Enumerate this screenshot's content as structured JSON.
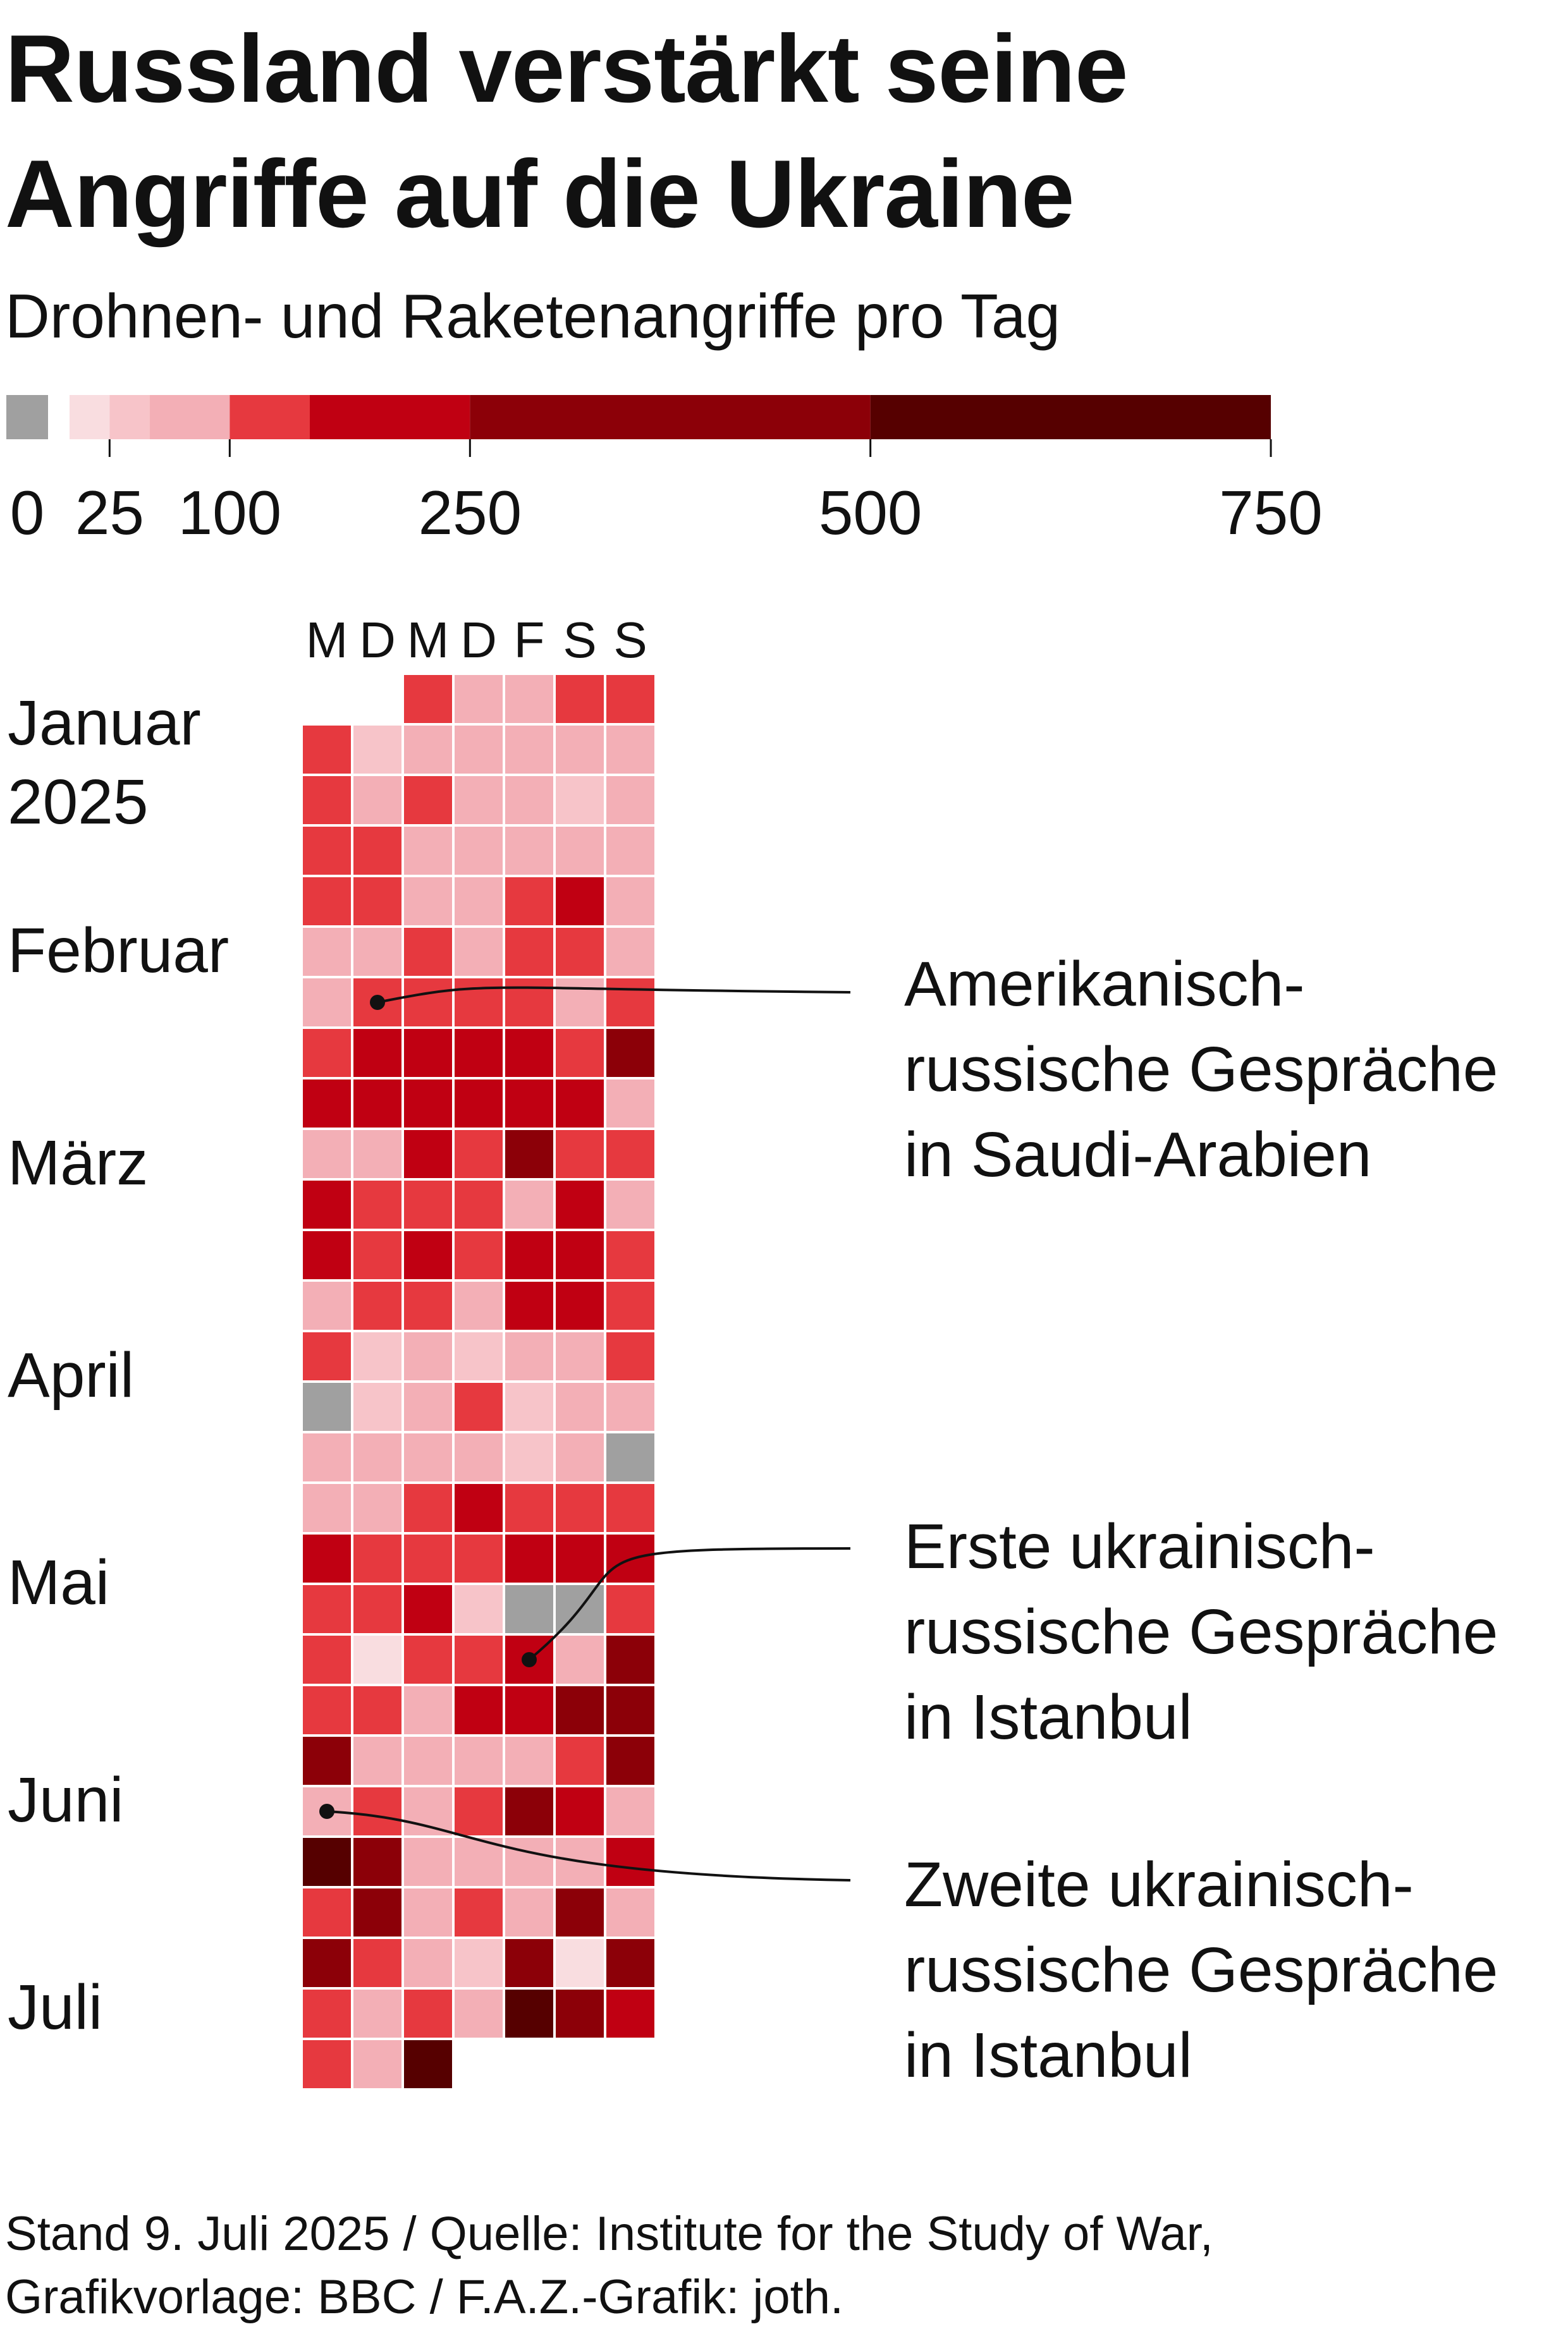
{
  "title_line1": "Russland verstärkt seine",
  "title_line2": "Angriffe auf die Ukraine",
  "subtitle": "Drohnen- und Raketenangriffe pro Tag",
  "footer_line1": "Stand 9. Juli 2025 / Quelle: Institute for the Study of War,",
  "footer_line2": "Grafikvorlage: BBC / F.A.Z.-Grafik: joth.",
  "annotations": [
    {
      "lines": [
        "Amerikanisch-",
        "russische Gespräche",
        "in Saudi-Arabien"
      ]
    },
    {
      "lines": [
        "Erste ukrainisch-",
        "russische Gespräche",
        "in Istanbul"
      ]
    },
    {
      "lines": [
        "Zweite ukrainisch-",
        "russische Gespräche",
        "in Istanbul"
      ]
    }
  ],
  "colors": {
    "b0": "#a0a0a0",
    "b1": "#f9dde0",
    "b2": "#f7c4c9",
    "b3": "#f3afb6",
    "b4": "#e6393f",
    "b5": "#c00012",
    "b6": "#8c0008",
    "b7": "#560000"
  },
  "chart_data": {
    "type": "heatmap",
    "legend": {
      "tick_labels": [
        "0",
        "25",
        "100",
        "250",
        "500",
        "750"
      ],
      "bins": [
        {
          "from": 0,
          "to": 0,
          "color": "b0"
        },
        {
          "from": 0,
          "to": 25,
          "color": "b1"
        },
        {
          "from": 25,
          "to": 50,
          "color": "b2"
        },
        {
          "from": 50,
          "to": 100,
          "color": "b3"
        },
        {
          "from": 100,
          "to": 150,
          "color": "b4"
        },
        {
          "from": 150,
          "to": 250,
          "color": "b5"
        },
        {
          "from": 250,
          "to": 500,
          "color": "b6"
        },
        {
          "from": 500,
          "to": 750,
          "color": "b7"
        }
      ]
    },
    "weekdays": [
      "M",
      "D",
      "M",
      "D",
      "F",
      "S",
      "S"
    ],
    "month_labels": [
      {
        "lines": [
          "Januar",
          "2025"
        ],
        "week": 1
      },
      {
        "lines": [
          "Februar"
        ],
        "week": 5.5
      },
      {
        "lines": [
          "März"
        ],
        "week": 9.7
      },
      {
        "lines": [
          "April"
        ],
        "week": 13.9
      },
      {
        "lines": [
          "Mai"
        ],
        "week": 18.0
      },
      {
        "lines": [
          "Juni"
        ],
        "week": 22.3
      },
      {
        "lines": [
          "Juli"
        ],
        "week": 26.4
      }
    ],
    "weeks": [
      [
        null,
        null,
        4,
        3,
        3,
        4,
        4
      ],
      [
        4,
        2,
        3,
        3,
        3,
        3,
        3
      ],
      [
        4,
        3,
        4,
        3,
        3,
        2,
        3
      ],
      [
        4,
        4,
        3,
        3,
        3,
        3,
        3
      ],
      [
        4,
        4,
        3,
        3,
        4,
        5,
        3
      ],
      [
        3,
        3,
        4,
        3,
        4,
        4,
        3
      ],
      [
        3,
        4,
        4,
        4,
        4,
        3,
        4
      ],
      [
        4,
        5,
        5,
        5,
        5,
        4,
        6
      ],
      [
        5,
        5,
        5,
        5,
        5,
        5,
        3
      ],
      [
        3,
        3,
        5,
        4,
        6,
        4,
        4
      ],
      [
        5,
        4,
        4,
        4,
        3,
        5,
        3
      ],
      [
        5,
        4,
        5,
        4,
        5,
        5,
        4
      ],
      [
        3,
        4,
        4,
        3,
        5,
        5,
        4
      ],
      [
        4,
        2,
        3,
        2,
        3,
        3,
        4
      ],
      [
        0,
        2,
        3,
        4,
        2,
        3,
        3
      ],
      [
        3,
        3,
        3,
        3,
        2,
        3,
        0
      ],
      [
        3,
        3,
        4,
        5,
        4,
        4,
        4
      ],
      [
        5,
        4,
        4,
        4,
        5,
        5,
        5
      ],
      [
        4,
        4,
        5,
        2,
        0,
        0,
        4
      ],
      [
        4,
        1,
        4,
        4,
        5,
        3,
        6
      ],
      [
        4,
        4,
        3,
        5,
        5,
        6,
        6
      ],
      [
        6,
        3,
        3,
        3,
        3,
        4,
        6
      ],
      [
        3,
        4,
        3,
        4,
        6,
        5,
        3
      ],
      [
        7,
        6,
        3,
        3,
        3,
        3,
        5
      ],
      [
        4,
        6,
        3,
        4,
        3,
        6,
        3
      ],
      [
        6,
        4,
        3,
        2,
        6,
        1,
        6
      ],
      [
        4,
        3,
        4,
        3,
        7,
        6,
        5
      ],
      [
        4,
        3,
        7,
        null,
        null,
        null,
        null
      ]
    ],
    "annotation_points": [
      {
        "week": 6,
        "day": 1
      },
      {
        "week": 19,
        "day": 4
      },
      {
        "week": 22,
        "day": 0
      }
    ]
  }
}
